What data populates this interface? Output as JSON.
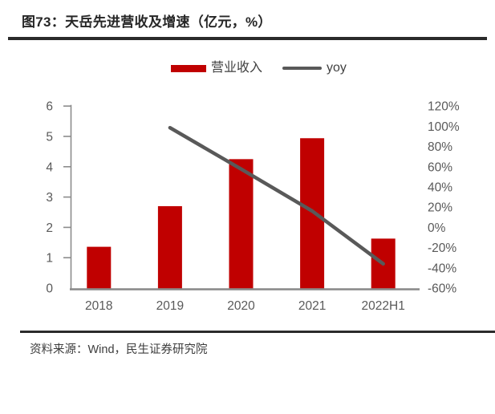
{
  "figure": {
    "title": "图73：天岳先进营收及增速（亿元，%）",
    "source": "资料来源：Wind，民生证券研究院"
  },
  "colors": {
    "bar_red": "#c00000",
    "line_gray": "#595959",
    "axis_gray": "#8c8c8c",
    "tick_label_gray": "#595959",
    "rule_dark": "#2b2b2b"
  },
  "chart_data": {
    "type": "bar+line",
    "title": "图73：天岳先进营收及增速（亿元，%）",
    "categories": [
      "2018",
      "2019",
      "2020",
      "2021",
      "2022H1"
    ],
    "series": [
      {
        "name": "营业收入",
        "type": "bar",
        "axis": "left",
        "color": "#c00000",
        "values": [
          1.36,
          2.7,
          4.25,
          4.94,
          1.63
        ]
      },
      {
        "name": "yoy",
        "type": "line",
        "axis": "right",
        "color": "#595959",
        "values": [
          null,
          98.6,
          57.7,
          16.2,
          -36.0
        ]
      }
    ],
    "left_axis": {
      "min": 0,
      "max": 6,
      "step": 1,
      "ticks": [
        "6",
        "5",
        "4",
        "3",
        "2",
        "1",
        "0"
      ]
    },
    "right_axis": {
      "min": -60,
      "max": 120,
      "step": 20,
      "ticks": [
        "120%",
        "100%",
        "80%",
        "60%",
        "40%",
        "20%",
        "0%",
        "-20%",
        "-40%",
        "-60%"
      ]
    },
    "legend_position": "top",
    "grid": false
  }
}
